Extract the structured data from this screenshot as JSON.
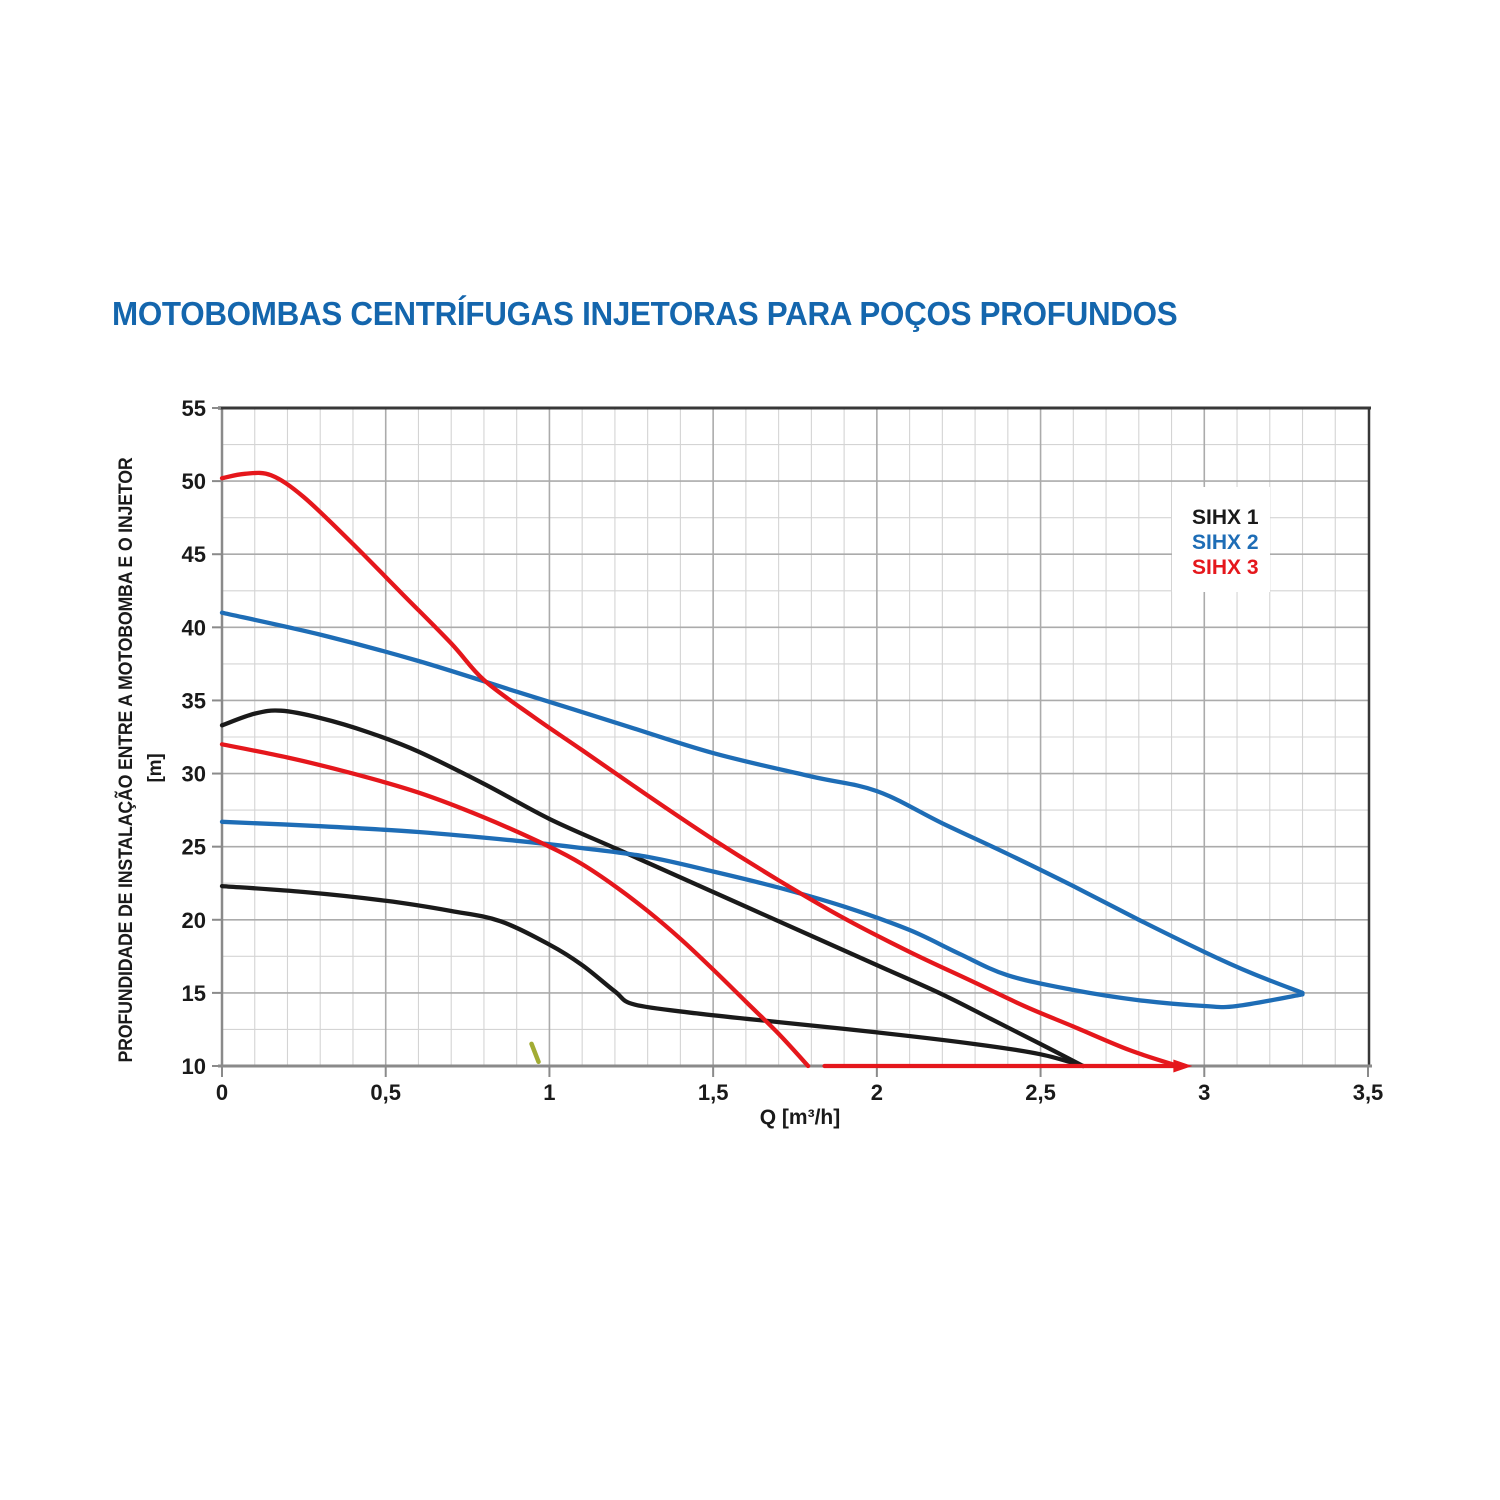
{
  "title": "MOTOBOMBAS CENTRÍFUGAS INJETORAS PARA POÇOS PROFUNDOS",
  "chart_data": {
    "type": "line",
    "title": "MOTOBOMBAS CENTRÍFUGAS INJETORAS PARA POÇOS PROFUNDOS",
    "xlabel": "Q [m³/h]",
    "ylabel": "PROFUNDIDADE DE INSTALAÇÃO ENTRE A MOTOBOMBA E O INJETOR",
    "ylabel_unit": "[m]",
    "xlim": [
      0,
      3.5
    ],
    "ylim": [
      10,
      55
    ],
    "grid": {
      "minor_x": 0.1,
      "major_x": 0.5,
      "minor_y": 2.5,
      "major_y": 5,
      "visible": true
    },
    "x_ticks": [
      {
        "q": 0,
        "label": "0"
      },
      {
        "q": 0.5,
        "label": "0,5"
      },
      {
        "q": 1,
        "label": "1"
      },
      {
        "q": 1.5,
        "label": "1,5"
      },
      {
        "q": 2,
        "label": "2"
      },
      {
        "q": 2.5,
        "label": "2,5"
      },
      {
        "q": 3,
        "label": "3"
      },
      {
        "q": 3.5,
        "label": "3,5"
      }
    ],
    "y_ticks": [
      {
        "v": 55,
        "label": "55"
      },
      {
        "v": 50,
        "label": "50"
      },
      {
        "v": 45,
        "label": "45"
      },
      {
        "v": 40,
        "label": "40"
      },
      {
        "v": 35,
        "label": "35"
      },
      {
        "v": 30,
        "label": "30"
      },
      {
        "v": 25,
        "label": "25"
      },
      {
        "v": 20,
        "label": "20"
      },
      {
        "v": 15,
        "label": "15"
      },
      {
        "v": 10,
        "label": "10"
      }
    ],
    "legend": {
      "position": "top-right",
      "entries": [
        {
          "label": "SIHX 1",
          "color": "#1a1a1a"
        },
        {
          "label": "SIHX 2",
          "color": "#1e6db6"
        },
        {
          "label": "SIHX 3",
          "color": "#e5171c"
        }
      ]
    },
    "series": [
      {
        "name": "SIHX 1 upper",
        "color": "#1a1a1a",
        "points": [
          [
            0,
            33.3
          ],
          [
            0.1,
            34.1
          ],
          [
            0.18,
            34.3
          ],
          [
            0.3,
            33.8
          ],
          [
            0.45,
            32.8
          ],
          [
            0.6,
            31.5
          ],
          [
            0.8,
            29.3
          ],
          [
            1.0,
            26.9
          ],
          [
            1.2,
            24.9
          ],
          [
            1.4,
            22.9
          ],
          [
            1.6,
            20.9
          ],
          [
            1.8,
            18.9
          ],
          [
            2.0,
            16.9
          ],
          [
            2.2,
            14.9
          ],
          [
            2.35,
            13.2
          ],
          [
            2.5,
            11.5
          ],
          [
            2.63,
            10.0
          ]
        ]
      },
      {
        "name": "SIHX 1 lower",
        "color": "#1a1a1a",
        "points": [
          [
            0,
            22.3
          ],
          [
            0.25,
            21.9
          ],
          [
            0.5,
            21.3
          ],
          [
            0.7,
            20.6
          ],
          [
            0.85,
            19.9
          ],
          [
            1.0,
            18.3
          ],
          [
            1.1,
            16.9
          ],
          [
            1.2,
            15.1
          ],
          [
            1.26,
            14.2
          ],
          [
            1.45,
            13.6
          ],
          [
            1.7,
            13.0
          ],
          [
            2.0,
            12.3
          ],
          [
            2.3,
            11.5
          ],
          [
            2.5,
            10.8
          ],
          [
            2.63,
            10.0
          ]
        ]
      },
      {
        "name": "SIHX 2 upper",
        "color": "#1e6db6",
        "points": [
          [
            0,
            41.0
          ],
          [
            0.3,
            39.5
          ],
          [
            0.6,
            37.7
          ],
          [
            0.9,
            35.6
          ],
          [
            1.2,
            33.5
          ],
          [
            1.5,
            31.4
          ],
          [
            1.8,
            29.8
          ],
          [
            2.0,
            28.8
          ],
          [
            2.2,
            26.6
          ],
          [
            2.4,
            24.5
          ],
          [
            2.6,
            22.3
          ],
          [
            2.8,
            20.0
          ],
          [
            3.0,
            17.8
          ],
          [
            3.15,
            16.3
          ],
          [
            3.3,
            15.0
          ]
        ]
      },
      {
        "name": "SIHX 2 lower",
        "color": "#1e6db6",
        "points": [
          [
            0,
            26.7
          ],
          [
            0.3,
            26.4
          ],
          [
            0.6,
            26.0
          ],
          [
            0.9,
            25.4
          ],
          [
            1.1,
            24.9
          ],
          [
            1.3,
            24.3
          ],
          [
            1.5,
            23.3
          ],
          [
            1.7,
            22.2
          ],
          [
            1.9,
            20.9
          ],
          [
            2.1,
            19.3
          ],
          [
            2.25,
            17.7
          ],
          [
            2.4,
            16.2
          ],
          [
            2.6,
            15.2
          ],
          [
            2.8,
            14.5
          ],
          [
            3.0,
            14.1
          ],
          [
            3.1,
            14.1
          ],
          [
            3.3,
            14.9
          ]
        ]
      },
      {
        "name": "SIHX 3 upper",
        "color": "#e5171c",
        "points": [
          [
            0,
            50.2
          ],
          [
            0.07,
            50.5
          ],
          [
            0.15,
            50.4
          ],
          [
            0.25,
            48.9
          ],
          [
            0.4,
            45.7
          ],
          [
            0.55,
            42.3
          ],
          [
            0.7,
            38.9
          ],
          [
            0.8,
            36.4
          ],
          [
            0.95,
            33.9
          ],
          [
            1.1,
            31.6
          ],
          [
            1.3,
            28.5
          ],
          [
            1.5,
            25.5
          ],
          [
            1.7,
            22.7
          ],
          [
            1.9,
            20.1
          ],
          [
            2.1,
            17.8
          ],
          [
            2.3,
            15.7
          ],
          [
            2.45,
            14.1
          ],
          [
            2.6,
            12.7
          ],
          [
            2.77,
            11.1
          ],
          [
            2.92,
            10.0
          ]
        ]
      },
      {
        "name": "SIHX 3 lower",
        "color": "#e5171c",
        "points": [
          [
            0,
            32.0
          ],
          [
            0.2,
            31.1
          ],
          [
            0.4,
            30.0
          ],
          [
            0.6,
            28.7
          ],
          [
            0.8,
            27.0
          ],
          [
            1.0,
            25.0
          ],
          [
            1.1,
            23.8
          ],
          [
            1.2,
            22.3
          ],
          [
            1.3,
            20.6
          ],
          [
            1.4,
            18.7
          ],
          [
            1.5,
            16.6
          ],
          [
            1.6,
            14.4
          ],
          [
            1.7,
            12.2
          ],
          [
            1.79,
            10.0
          ]
        ]
      },
      {
        "name": "SIHX 3 bottom limit",
        "color": "#e5171c",
        "straight": true,
        "arrow_end": true,
        "points": [
          [
            1.84,
            10.0
          ],
          [
            2.93,
            10.0
          ]
        ]
      }
    ],
    "annotations": [
      {
        "type": "slash-mark",
        "x": 0.956,
        "y": 10.9,
        "color": "#99a41f"
      }
    ]
  }
}
